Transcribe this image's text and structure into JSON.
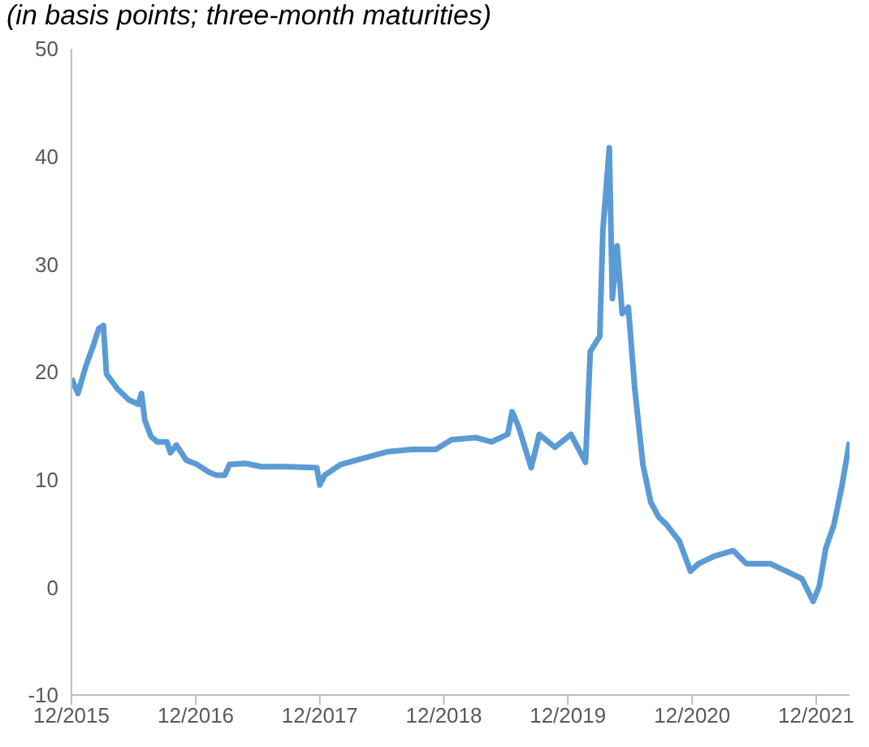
{
  "chart_data": {
    "type": "line",
    "subtitle": "(in basis points; three-month maturities)",
    "x": [
      "2015-12-01",
      "2015-12-20",
      "2016-01-12",
      "2016-02-05",
      "2016-02-19",
      "2016-03-04",
      "2016-03-13",
      "2016-04-15",
      "2016-05-18",
      "2016-06-15",
      "2016-06-24",
      "2016-07-04",
      "2016-07-22",
      "2016-08-10",
      "2016-09-07",
      "2016-09-17",
      "2016-10-05",
      "2016-11-03",
      "2016-12-05",
      "2017-01-08",
      "2017-01-31",
      "2017-02-24",
      "2017-03-10",
      "2017-04-26",
      "2017-06-12",
      "2017-08-21",
      "2017-11-22",
      "2017-12-01",
      "2017-12-15",
      "2018-01-31",
      "2018-04-10",
      "2018-06-20",
      "2018-08-29",
      "2018-11-07",
      "2018-12-24",
      "2019-03-04",
      "2019-04-20",
      "2019-06-07",
      "2019-06-20",
      "2019-07-09",
      "2019-08-15",
      "2019-09-08",
      "2019-10-24",
      "2019-12-10",
      "2020-01-22",
      "2020-02-05",
      "2020-03-04",
      "2020-03-13",
      "2020-04-01",
      "2020-04-10",
      "2020-04-24",
      "2020-05-09",
      "2020-05-27",
      "2020-06-15",
      "2020-07-09",
      "2020-08-01",
      "2020-08-25",
      "2020-09-17",
      "2020-10-24",
      "2020-11-26",
      "2020-12-20",
      "2021-02-05",
      "2021-04-01",
      "2021-05-09",
      "2021-07-18",
      "2021-09-03",
      "2021-10-20",
      "2021-11-22",
      "2021-12-10",
      "2021-12-29",
      "2022-01-22",
      "2022-02-14",
      "2022-03-09"
    ],
    "series": [
      {
        "color": "#5b9bd5",
        "values": [
          19.4,
          18,
          20.5,
          22.6,
          24,
          24.3,
          19.8,
          18.4,
          17.4,
          17,
          18,
          15.5,
          14,
          13.5,
          13.5,
          12.5,
          13.2,
          11.8,
          11.4,
          10.7,
          10.4,
          10.4,
          11.4,
          11.5,
          11.2,
          11.2,
          11.1,
          9.5,
          10.4,
          11.4,
          12,
          12.6,
          12.8,
          12.8,
          13.7,
          13.9,
          13.5,
          14.2,
          16.3,
          14.9,
          11.1,
          14.2,
          13,
          14.2,
          11.6,
          21.9,
          23.3,
          33.1,
          40.8,
          26.8,
          31.7,
          25.4,
          26,
          18.4,
          11.4,
          7.9,
          6.5,
          5.8,
          4.3,
          1.5,
          2.2,
          2.9,
          3.4,
          2.2,
          2.2,
          1.5,
          0.8,
          -1.3,
          0.1,
          3.6,
          5.8,
          9.3,
          13.5
        ]
      }
    ],
    "xlim": [
      "2015-12-01",
      "2022-03-09"
    ],
    "xticks": [
      {
        "value": "2015-12-01",
        "label": "12/2015"
      },
      {
        "value": "2016-12-01",
        "label": "12/2016"
      },
      {
        "value": "2017-12-01",
        "label": "12/2017"
      },
      {
        "value": "2018-12-01",
        "label": "12/2018"
      },
      {
        "value": "2019-12-01",
        "label": "12/2019"
      },
      {
        "value": "2020-12-01",
        "label": "12/2020"
      },
      {
        "value": "2021-12-01",
        "label": "12/2021"
      }
    ],
    "ylim": [
      -10,
      50
    ],
    "yticks": [
      -10,
      0,
      10,
      20,
      30,
      40,
      50
    ],
    "grid": false,
    "legend": false,
    "marker": "none",
    "line_style": "solid"
  }
}
